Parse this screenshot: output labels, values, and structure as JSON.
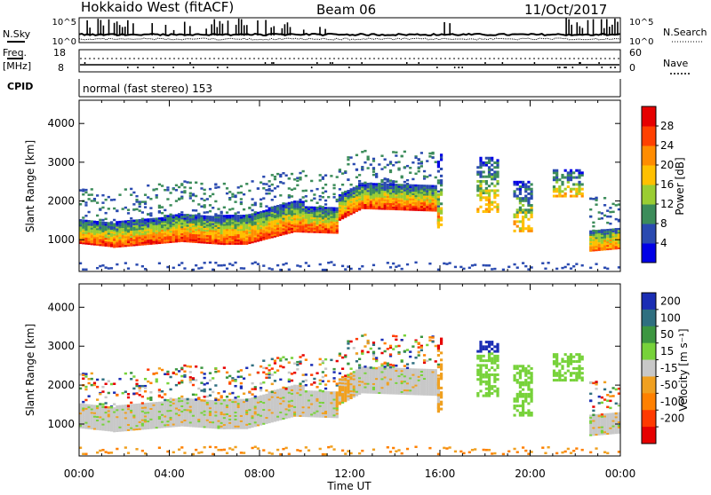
{
  "header": {
    "station": "Hokkaido West (fitACF)",
    "beam": "Beam 06",
    "date": "11/Oct/2017"
  },
  "noise_panel": {
    "left_label": "N.Sky",
    "right_label": "N.Search",
    "left_ticks": [
      "10^5",
      "10^0"
    ],
    "right_ticks": [
      "10^5",
      "10^0"
    ]
  },
  "freq_panel": {
    "left_label_line1": "Freq.",
    "left_label_line2": "[MHz]",
    "right_label": "Nave",
    "left_ticks": [
      "18",
      "8"
    ],
    "right_ticks": [
      "60",
      "0"
    ]
  },
  "cpid_panel": {
    "label": "CPID",
    "mode_text": "normal (fast stereo) 153"
  },
  "chart_data": [
    {
      "type": "heatmap",
      "name": "power",
      "xlabel": "Time UT",
      "ylabel": "Slant Range [km]",
      "x_ticks": [
        "00:00",
        "04:00",
        "08:00",
        "12:00",
        "16:00",
        "20:00",
        "00:00"
      ],
      "xlim_hours": [
        0,
        24
      ],
      "y_ticks": [
        1000,
        2000,
        3000,
        4000
      ],
      "ylim_km": [
        180,
        4600
      ],
      "colorbar_label": "Power [dB]",
      "colorbar_ticks": [
        4,
        8,
        12,
        16,
        20,
        24,
        28
      ],
      "colorbar_range": [
        0,
        32
      ],
      "colorbar_colors": [
        "#0000e6",
        "#2a4ab0",
        "#3c8c5a",
        "#9acd32",
        "#ffc000",
        "#ff8c00",
        "#ff4000",
        "#e60000"
      ]
    },
    {
      "type": "heatmap",
      "name": "velocity",
      "xlabel": "Time UT",
      "ylabel": "Slant Range [km]",
      "x_ticks": [
        "00:00",
        "04:00",
        "08:00",
        "12:00",
        "16:00",
        "20:00",
        "00:00"
      ],
      "xlim_hours": [
        0,
        24
      ],
      "y_ticks": [
        1000,
        2000,
        3000,
        4000
      ],
      "ylim_km": [
        180,
        4600
      ],
      "colorbar_label": "Velocity [m s⁻¹]",
      "colorbar_ticks": [
        "200",
        "100",
        "50",
        "15",
        "-15",
        "-50",
        "-100",
        "-200"
      ],
      "colorbar_colors": [
        "#1a2db4",
        "#2f6f80",
        "#3c9640",
        "#77d23a",
        "#c8c8c8",
        "#f0a020",
        "#ff8000",
        "#ff3a00",
        "#e60000"
      ]
    }
  ]
}
